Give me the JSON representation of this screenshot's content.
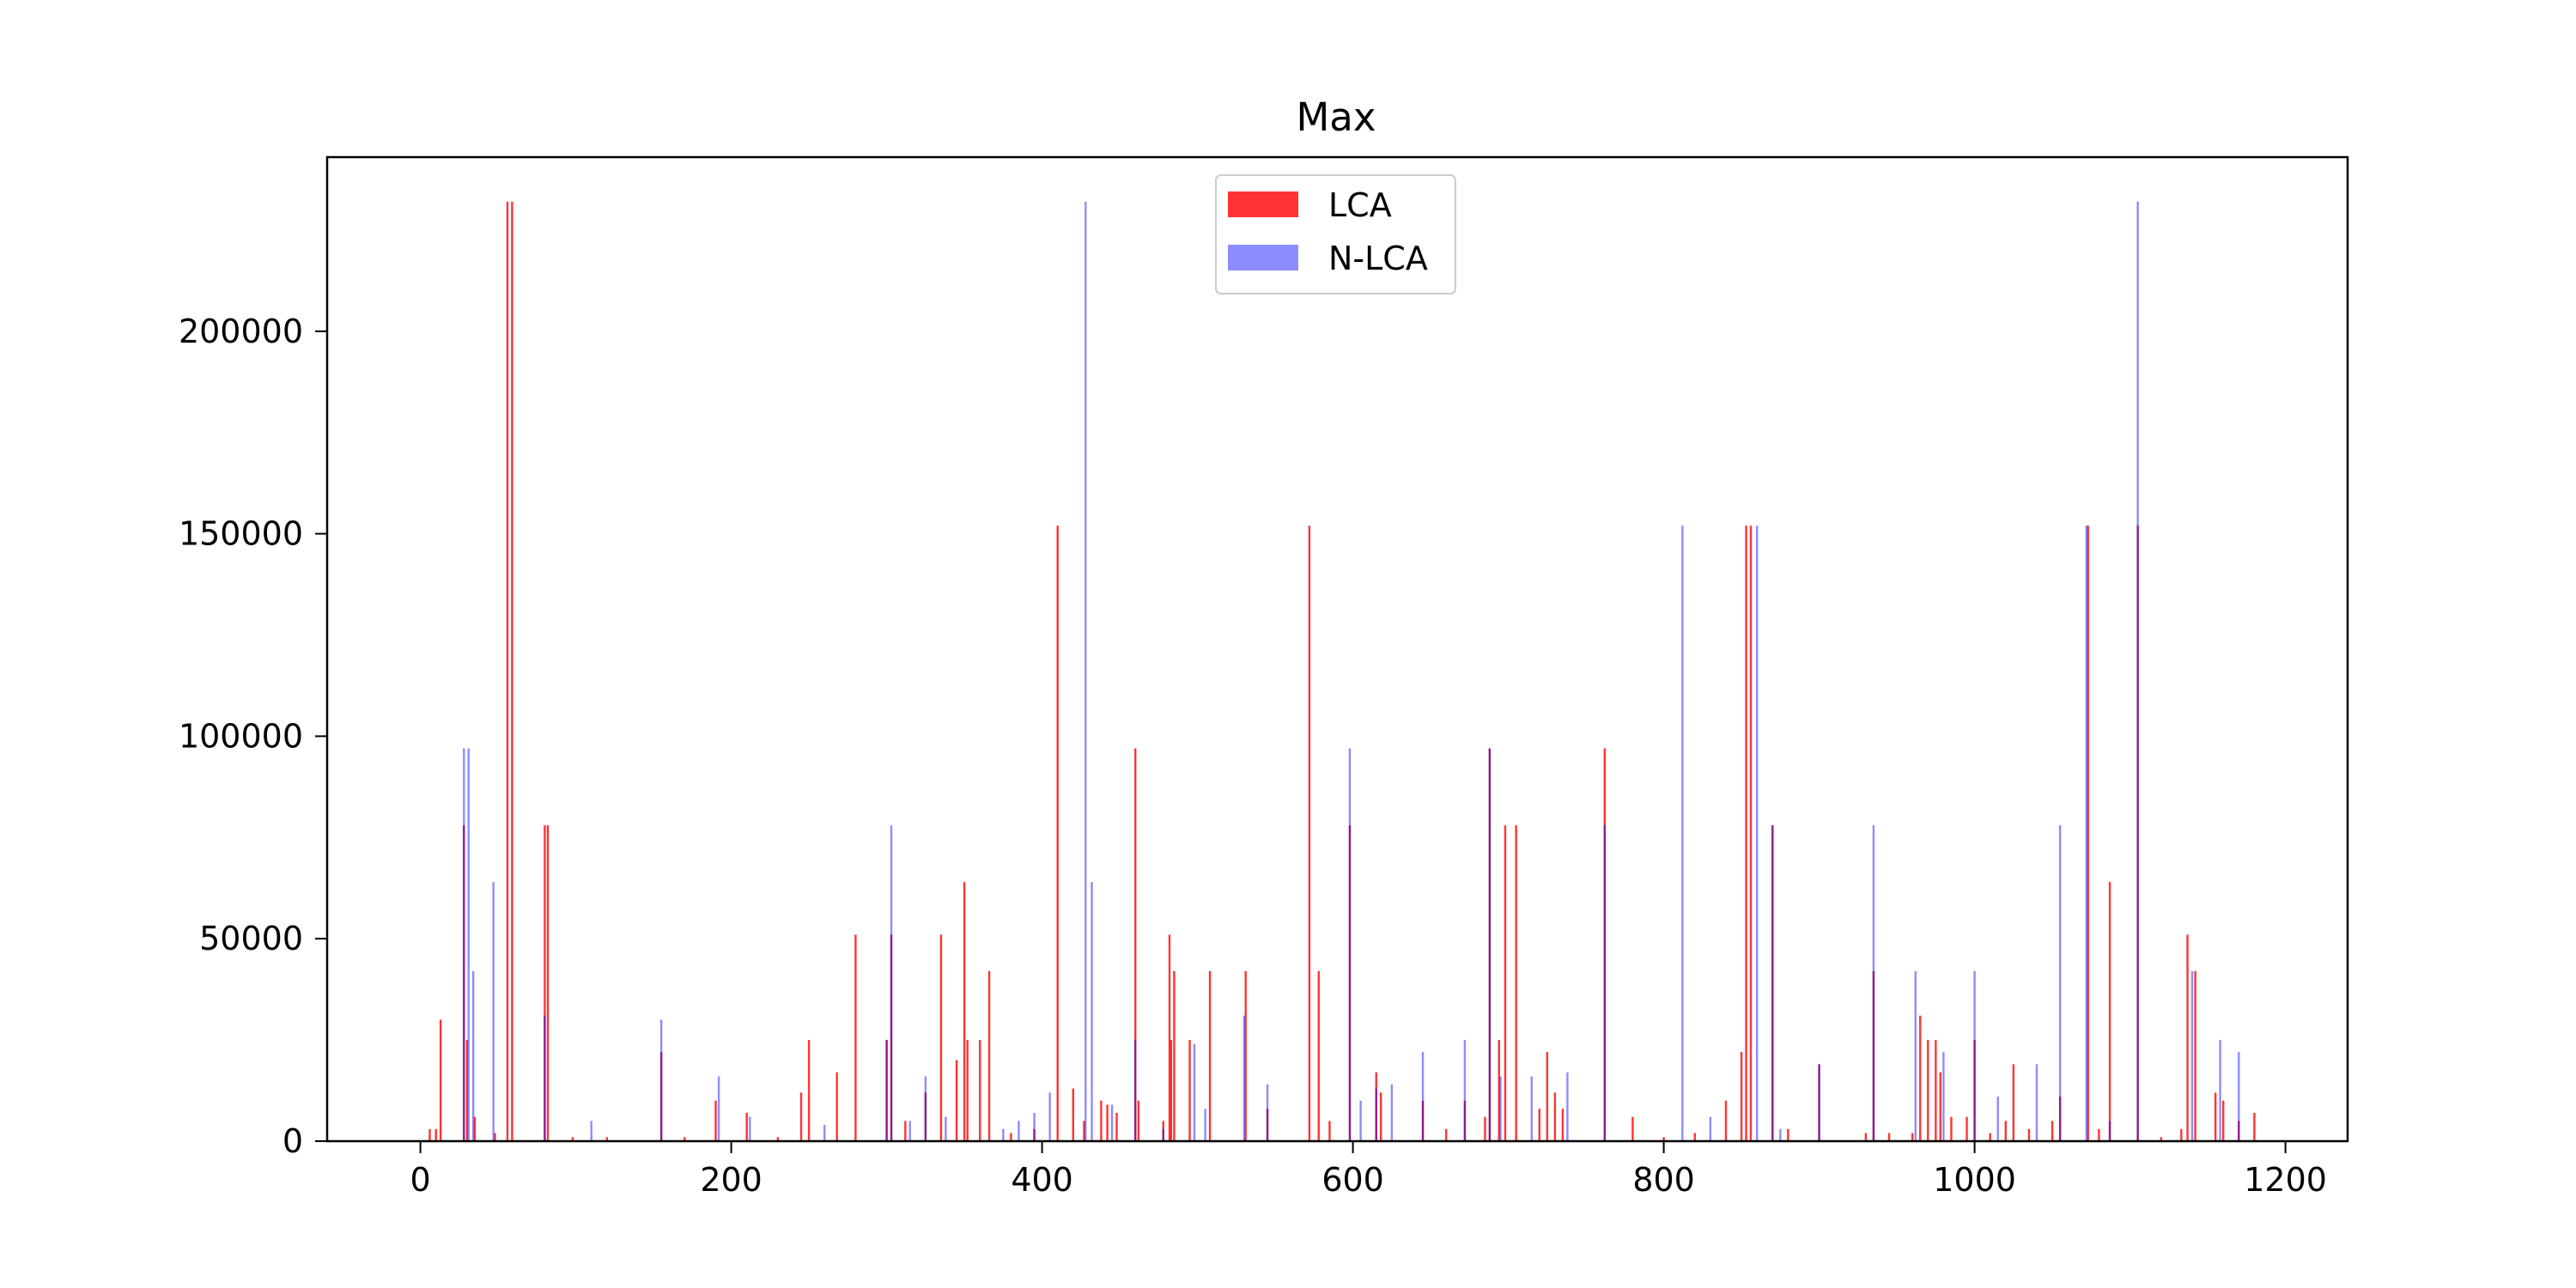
{
  "chart_data": {
    "type": "bar",
    "title": "Max",
    "xlabel": "",
    "ylabel": "",
    "xlim": [
      -60,
      1240
    ],
    "ylim": [
      0,
      243000
    ],
    "xticks": [
      0,
      200,
      400,
      600,
      800,
      1000,
      1200
    ],
    "yticks": [
      0,
      50000,
      100000,
      150000,
      200000
    ],
    "grid": false,
    "legend_position": "top-center",
    "series": [
      {
        "name": "LCA",
        "color": "#ff0000",
        "opacity": 0.8,
        "points": [
          [
            6,
            3000
          ],
          [
            10,
            3000
          ],
          [
            13,
            30000
          ],
          [
            28,
            78000
          ],
          [
            30,
            25000
          ],
          [
            35,
            6000
          ],
          [
            48,
            2000
          ],
          [
            56,
            232000
          ],
          [
            59,
            232000
          ],
          [
            80,
            78000
          ],
          [
            82,
            78000
          ],
          [
            98,
            1000
          ],
          [
            120,
            1000
          ],
          [
            155,
            22000
          ],
          [
            170,
            1000
          ],
          [
            190,
            10000
          ],
          [
            210,
            7000
          ],
          [
            230,
            1000
          ],
          [
            245,
            12000
          ],
          [
            250,
            25000
          ],
          [
            268,
            17000
          ],
          [
            280,
            51000
          ],
          [
            300,
            25000
          ],
          [
            303,
            51000
          ],
          [
            312,
            5000
          ],
          [
            325,
            12000
          ],
          [
            335,
            51000
          ],
          [
            345,
            20000
          ],
          [
            350,
            64000
          ],
          [
            352,
            25000
          ],
          [
            360,
            25000
          ],
          [
            366,
            42000
          ],
          [
            380,
            2000
          ],
          [
            395,
            3000
          ],
          [
            410,
            152000
          ],
          [
            420,
            13000
          ],
          [
            427,
            5000
          ],
          [
            438,
            10000
          ],
          [
            442,
            9000
          ],
          [
            448,
            7000
          ],
          [
            460,
            97000
          ],
          [
            462,
            10000
          ],
          [
            478,
            5000
          ],
          [
            482,
            51000
          ],
          [
            483,
            25000
          ],
          [
            485,
            42000
          ],
          [
            495,
            25000
          ],
          [
            508,
            42000
          ],
          [
            531,
            42000
          ],
          [
            545,
            8000
          ],
          [
            572,
            152000
          ],
          [
            578,
            42000
          ],
          [
            585,
            5000
          ],
          [
            598,
            78000
          ],
          [
            615,
            17000
          ],
          [
            618,
            12000
          ],
          [
            645,
            10000
          ],
          [
            660,
            3000
          ],
          [
            672,
            10000
          ],
          [
            685,
            6000
          ],
          [
            688,
            97000
          ],
          [
            694,
            25000
          ],
          [
            698,
            78000
          ],
          [
            705,
            78000
          ],
          [
            720,
            8000
          ],
          [
            725,
            22000
          ],
          [
            730,
            12000
          ],
          [
            735,
            8000
          ],
          [
            762,
            97000
          ],
          [
            780,
            6000
          ],
          [
            800,
            1000
          ],
          [
            820,
            2000
          ],
          [
            840,
            10000
          ],
          [
            850,
            22000
          ],
          [
            853,
            152000
          ],
          [
            856,
            152000
          ],
          [
            870,
            78000
          ],
          [
            880,
            3000
          ],
          [
            900,
            19000
          ],
          [
            930,
            2000
          ],
          [
            935,
            42000
          ],
          [
            945,
            2000
          ],
          [
            960,
            2000
          ],
          [
            965,
            31000
          ],
          [
            970,
            25000
          ],
          [
            975,
            25000
          ],
          [
            978,
            17000
          ],
          [
            985,
            6000
          ],
          [
            995,
            6000
          ],
          [
            1000,
            25000
          ],
          [
            1010,
            2000
          ],
          [
            1020,
            5000
          ],
          [
            1025,
            19000
          ],
          [
            1035,
            3000
          ],
          [
            1050,
            5000
          ],
          [
            1055,
            11000
          ],
          [
            1073,
            152000
          ],
          [
            1080,
            3000
          ],
          [
            1087,
            64000
          ],
          [
            1105,
            152000
          ],
          [
            1120,
            1000
          ],
          [
            1133,
            3000
          ],
          [
            1137,
            51000
          ],
          [
            1142,
            42000
          ],
          [
            1155,
            12000
          ],
          [
            1160,
            10000
          ],
          [
            1170,
            5000
          ],
          [
            1180,
            7000
          ]
        ]
      },
      {
        "name": "N-LCA",
        "color": "#0000ff",
        "opacity": 0.45,
        "points": [
          [
            28,
            97000
          ],
          [
            31,
            97000
          ],
          [
            34,
            42000
          ],
          [
            47,
            64000
          ],
          [
            80,
            31000
          ],
          [
            110,
            5000
          ],
          [
            155,
            30000
          ],
          [
            192,
            16000
          ],
          [
            212,
            6000
          ],
          [
            260,
            4000
          ],
          [
            300,
            25000
          ],
          [
            303,
            78000
          ],
          [
            315,
            5000
          ],
          [
            325,
            16000
          ],
          [
            338,
            6000
          ],
          [
            375,
            3000
          ],
          [
            385,
            5000
          ],
          [
            395,
            7000
          ],
          [
            405,
            12000
          ],
          [
            428,
            232000
          ],
          [
            432,
            64000
          ],
          [
            445,
            9000
          ],
          [
            460,
            25000
          ],
          [
            478,
            3000
          ],
          [
            498,
            24000
          ],
          [
            505,
            8000
          ],
          [
            530,
            31000
          ],
          [
            545,
            14000
          ],
          [
            598,
            97000
          ],
          [
            605,
            10000
          ],
          [
            615,
            13000
          ],
          [
            625,
            14000
          ],
          [
            645,
            22000
          ],
          [
            672,
            25000
          ],
          [
            688,
            97000
          ],
          [
            695,
            16000
          ],
          [
            715,
            16000
          ],
          [
            738,
            17000
          ],
          [
            762,
            78000
          ],
          [
            812,
            152000
          ],
          [
            830,
            6000
          ],
          [
            860,
            152000
          ],
          [
            870,
            78000
          ],
          [
            875,
            3000
          ],
          [
            900,
            19000
          ],
          [
            935,
            78000
          ],
          [
            962,
            42000
          ],
          [
            980,
            22000
          ],
          [
            1000,
            42000
          ],
          [
            1015,
            11000
          ],
          [
            1040,
            19000
          ],
          [
            1055,
            78000
          ],
          [
            1072,
            152000
          ],
          [
            1087,
            5000
          ],
          [
            1105,
            232000
          ],
          [
            1140,
            42000
          ],
          [
            1158,
            25000
          ],
          [
            1170,
            22000
          ]
        ]
      }
    ]
  }
}
